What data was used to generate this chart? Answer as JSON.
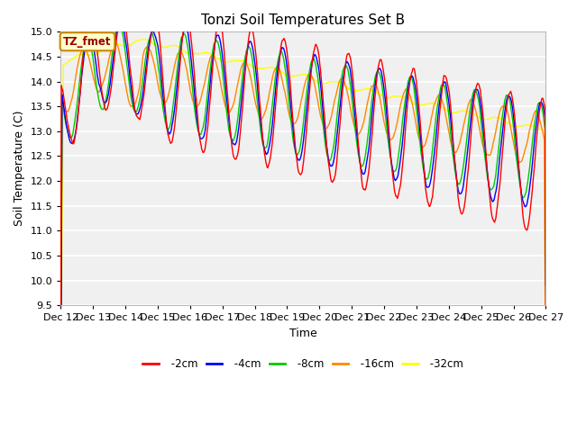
{
  "title": "Tonzi Soil Temperatures Set B",
  "xlabel": "Time",
  "ylabel": "Soil Temperature (C)",
  "ylim": [
    9.5,
    15.0
  ],
  "yticks": [
    9.5,
    10.0,
    10.5,
    11.0,
    11.5,
    12.0,
    12.5,
    13.0,
    13.5,
    14.0,
    14.5,
    15.0
  ],
  "series_colors": {
    "-2cm": "#ff0000",
    "-4cm": "#0000ff",
    "-8cm": "#00cc00",
    "-16cm": "#ff8800",
    "-32cm": "#ffff00"
  },
  "annotation_text": "TZ_fmet",
  "annotation_bg": "#ffffcc",
  "annotation_border": "#cc8800",
  "plot_bg": "#f0f0f0",
  "fig_bg": "#ffffff",
  "n_points": 720,
  "x_start": 12,
  "x_end": 27,
  "xtick_labels": [
    "Dec 12",
    "Dec 13",
    "Dec 14",
    "Dec 15",
    "Dec 16",
    "Dec 17",
    "Dec 18",
    "Dec 19",
    "Dec 20",
    "Dec 21",
    "Dec 22",
    "Dec 23",
    "Dec 24",
    "Dec 25",
    "Dec 26",
    "Dec 27"
  ],
  "xtick_positions": [
    12,
    13,
    14,
    15,
    16,
    17,
    18,
    19,
    20,
    21,
    22,
    23,
    24,
    25,
    26,
    27
  ]
}
